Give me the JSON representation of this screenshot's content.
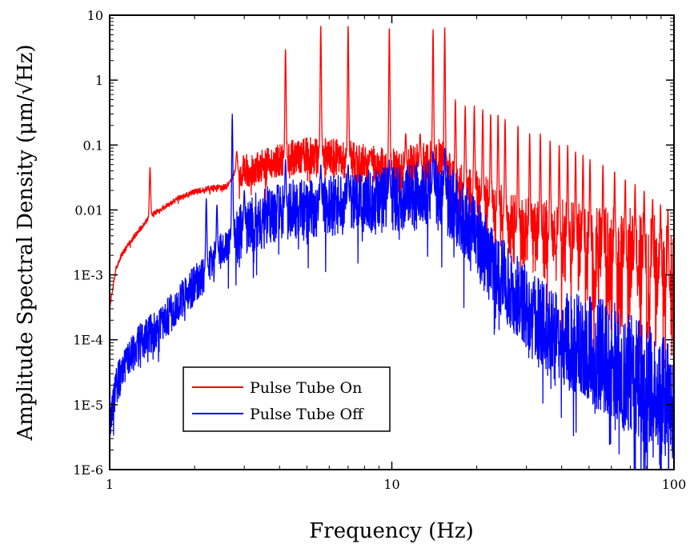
{
  "chart_data": {
    "type": "line",
    "title": "",
    "xlabel": "Frequency (Hz)",
    "ylabel": "Amplitude Spectral Density (μm/√Hz)",
    "xscale": "log",
    "yscale": "log",
    "xlim": [
      1,
      100
    ],
    "ylim": [
      1e-06,
      10
    ],
    "x_ticks": [
      1,
      10,
      100
    ],
    "x_tick_labels": [
      "1",
      "10",
      "100"
    ],
    "y_ticks": [
      1e-06,
      1e-05,
      0.0001,
      0.001,
      0.01,
      0.1,
      1,
      10
    ],
    "y_tick_labels": [
      "1E-6",
      "1E-5",
      "1E-4",
      "1E-3",
      "0.01",
      "0.1",
      "1",
      "10"
    ],
    "grid": false,
    "legend_position": "bottom-left",
    "series": [
      {
        "name": "Pulse Tube On",
        "color": "#ff0000",
        "baseline": [
          [
            1.0,
            0.0003
          ],
          [
            1.05,
            0.0012
          ],
          [
            1.1,
            0.002
          ],
          [
            1.2,
            0.0035
          ],
          [
            1.3,
            0.0055
          ],
          [
            1.39,
            0.008
          ],
          [
            1.45,
            0.009
          ],
          [
            1.6,
            0.012
          ],
          [
            1.8,
            0.016
          ],
          [
            2.0,
            0.019
          ],
          [
            2.3,
            0.022
          ],
          [
            2.6,
            0.023
          ],
          [
            2.8,
            0.04
          ],
          [
            3.2,
            0.04
          ],
          [
            3.6,
            0.05
          ],
          [
            4.0,
            0.06
          ],
          [
            5.0,
            0.07
          ],
          [
            6.0,
            0.065
          ],
          [
            7.0,
            0.06
          ],
          [
            8.0,
            0.05
          ],
          [
            10.0,
            0.04
          ],
          [
            12.0,
            0.045
          ],
          [
            14.0,
            0.05
          ],
          [
            15.0,
            0.05
          ],
          [
            16.0,
            0.03
          ],
          [
            18.0,
            0.02
          ],
          [
            20.0,
            0.015
          ],
          [
            23.0,
            0.01
          ],
          [
            27.0,
            0.005
          ],
          [
            30.0,
            0.004
          ],
          [
            40.0,
            0.003
          ],
          [
            50.0,
            0.002
          ],
          [
            60.0,
            0.0015
          ],
          [
            70.0,
            0.0012
          ],
          [
            80.0,
            0.001
          ],
          [
            90.0,
            0.0007
          ],
          [
            100.0,
            0.0005
          ]
        ],
        "peaks": [
          [
            1.39,
            0.045
          ],
          [
            2.7,
            0.025
          ],
          [
            2.82,
            0.08
          ],
          [
            4.2,
            3.0
          ],
          [
            5.6,
            7.0
          ],
          [
            7.0,
            7.0
          ],
          [
            8.4,
            0.08
          ],
          [
            9.8,
            6.5
          ],
          [
            11.2,
            0.15
          ],
          [
            12.6,
            0.15
          ],
          [
            14.0,
            6.0
          ],
          [
            15.4,
            6.5
          ],
          [
            16.8,
            0.5
          ],
          [
            18.2,
            0.4
          ],
          [
            19.6,
            0.4
          ],
          [
            21.0,
            0.35
          ],
          [
            22.4,
            0.3
          ],
          [
            23.8,
            0.3
          ],
          [
            25.2,
            0.25
          ],
          [
            28.0,
            0.2
          ],
          [
            30.8,
            0.15
          ],
          [
            33.6,
            0.15
          ],
          [
            36.4,
            0.12
          ],
          [
            39.2,
            0.1
          ],
          [
            42.0,
            0.1
          ],
          [
            44.8,
            0.08
          ],
          [
            47.6,
            0.07
          ],
          [
            50.4,
            0.06
          ],
          [
            56.0,
            0.05
          ],
          [
            61.6,
            0.04
          ],
          [
            67.2,
            0.03
          ],
          [
            72.8,
            0.025
          ],
          [
            78.4,
            0.02
          ],
          [
            84.0,
            0.015
          ],
          [
            89.6,
            0.012
          ],
          [
            95.2,
            0.01
          ]
        ]
      },
      {
        "name": "Pulse Tube Off",
        "color": "#0000ff",
        "baseline": [
          [
            1.0,
            5e-06
          ],
          [
            1.05,
            1.8e-05
          ],
          [
            1.1,
            3e-05
          ],
          [
            1.2,
            6e-05
          ],
          [
            1.3,
            0.0001
          ],
          [
            1.5,
            0.00015
          ],
          [
            1.7,
            0.0003
          ],
          [
            2.0,
            0.0007
          ],
          [
            2.3,
            0.0015
          ],
          [
            2.6,
            0.003
          ],
          [
            2.8,
            0.004
          ],
          [
            3.2,
            0.006
          ],
          [
            3.6,
            0.008
          ],
          [
            4.0,
            0.01
          ],
          [
            5.0,
            0.011
          ],
          [
            6.0,
            0.012
          ],
          [
            7.0,
            0.012
          ],
          [
            8.0,
            0.013
          ],
          [
            10.0,
            0.015
          ],
          [
            12.0,
            0.016
          ],
          [
            14.0,
            0.018
          ],
          [
            15.0,
            0.017
          ],
          [
            17.0,
            0.01
          ],
          [
            20.0,
            0.004
          ],
          [
            23.0,
            0.0015
          ],
          [
            26.0,
            0.0006
          ],
          [
            30.0,
            0.0003
          ],
          [
            35.0,
            0.00015
          ],
          [
            40.0,
            0.0001
          ],
          [
            50.0,
            7e-05
          ],
          [
            60.0,
            5e-05
          ],
          [
            70.0,
            3e-05
          ],
          [
            80.0,
            2e-05
          ],
          [
            90.0,
            1.5e-05
          ],
          [
            100.0,
            1e-05
          ]
        ],
        "peaks": [
          [
            2.2,
            0.015
          ],
          [
            2.4,
            0.012
          ],
          [
            2.72,
            0.3
          ],
          [
            3.0,
            0.02
          ],
          [
            4.2,
            0.06
          ],
          [
            5.6,
            0.05
          ],
          [
            7.0,
            0.05
          ],
          [
            9.8,
            0.06
          ],
          [
            14.0,
            0.08
          ],
          [
            15.4,
            0.09
          ]
        ]
      }
    ]
  }
}
